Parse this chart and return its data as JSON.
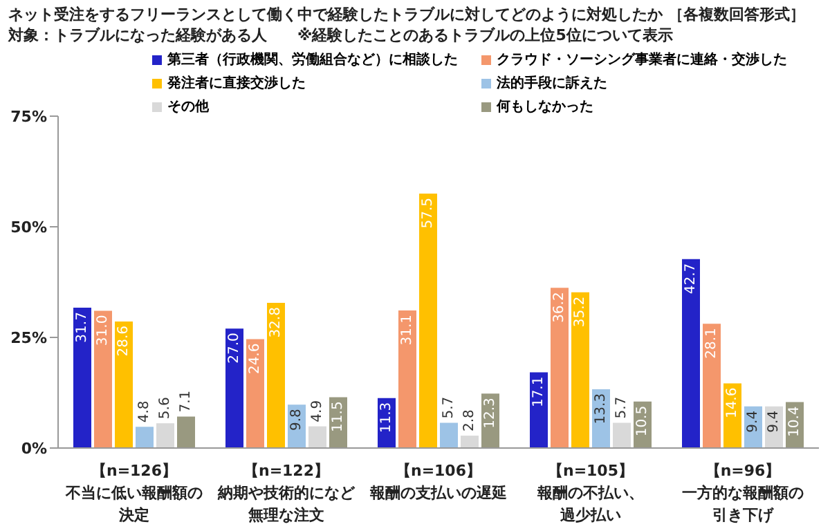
{
  "chart_data": {
    "type": "bar",
    "title": "ネット受注をするフリーランスとして働く中で経験したトラブルに対してどのように対処したか ［各複数回答形式］",
    "subtitle": "対象：トラブルになった経験がある人　　※経験したことのあるトラブルの上位5位について表示",
    "categories": [
      "【n=126】不当に低い報酬額の決定",
      "【n=122】納期や技術的になど無理な注文",
      "【n=106】報酬の支払いの遅延",
      "【n=105】報酬の不払い、過少払い",
      "【n=96】一方的な報酬額の引き下げ"
    ],
    "series": [
      {
        "name": "第三者（行政機関、労働組合など）に相談した",
        "color": "#2323c8",
        "values": [
          31.7,
          27.0,
          11.3,
          17.1,
          42.7
        ],
        "value_labels": [
          "31.7",
          "27.0",
          "11.3",
          "17.1",
          "42.7"
        ]
      },
      {
        "name": "クラウド・ソーシング事業者に連絡・交渉した",
        "color": "#f4976c",
        "values": [
          31.0,
          24.6,
          31.1,
          36.2,
          28.1
        ],
        "value_labels": [
          "31.0",
          "24.6",
          "31.1",
          "36.2",
          "28.1"
        ]
      },
      {
        "name": "発注者に直接交渉した",
        "color": "#ffc000",
        "values": [
          28.6,
          32.8,
          57.5,
          35.2,
          14.6
        ],
        "value_labels": [
          "28.6",
          "32.8",
          "57.5",
          "35.2",
          "14.6"
        ]
      },
      {
        "name": "法的手段に訴えた",
        "color": "#9dc3e6",
        "values": [
          4.8,
          9.8,
          5.7,
          13.3,
          9.4
        ],
        "value_labels": [
          "4.8",
          "9.8",
          "5.7",
          "13.3",
          "9.4"
        ]
      },
      {
        "name": "その他",
        "color": "#d9d9d9",
        "values": [
          5.6,
          4.9,
          2.8,
          5.7,
          9.4
        ],
        "value_labels": [
          "5.6",
          "4.9",
          "2.8",
          "5.7",
          "9.4"
        ]
      },
      {
        "name": "何もしなかった",
        "color": "#999980",
        "values": [
          7.1,
          11.5,
          12.3,
          10.5,
          10.4
        ],
        "value_labels": [
          "7.1",
          "11.5",
          "12.3",
          "10.5",
          "10.4"
        ]
      }
    ],
    "ylim": [
      0,
      75
    ],
    "yticks": [
      {
        "value": 0,
        "label": "0%"
      },
      {
        "value": 25,
        "label": "25%"
      },
      {
        "value": 50,
        "label": "50%"
      },
      {
        "value": 75,
        "label": "75%"
      }
    ],
    "legend": "top",
    "grid": false
  }
}
